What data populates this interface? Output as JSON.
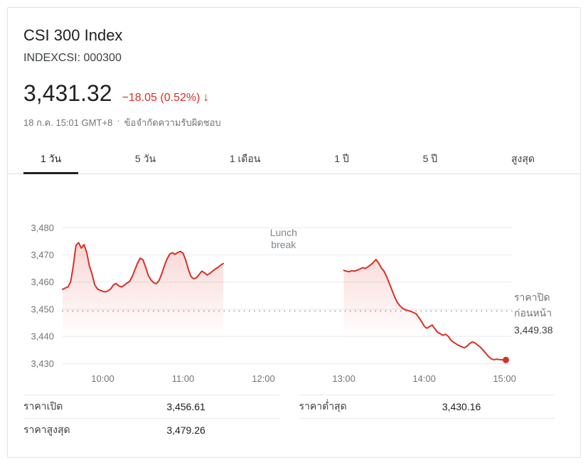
{
  "header": {
    "title": "CSI 300 Index",
    "ticker": "INDEXCSI: 000300"
  },
  "quote": {
    "price": "3,431.32",
    "change": "−18.05 (0.52%)",
    "arrow": "↓",
    "datetime": "18 ก.ค. 15:01 GMT+8",
    "separator": "·",
    "disclaimer": "ข้อจำกัดความรับผิดชอบ",
    "change_color": "#d93025"
  },
  "tabs": {
    "items": [
      {
        "label": "1 วัน",
        "active": true
      },
      {
        "label": "5 วัน",
        "active": false
      },
      {
        "label": "1 เดือน",
        "active": false
      },
      {
        "label": "1 ปี",
        "active": false
      },
      {
        "label": "5 ปี",
        "active": false
      },
      {
        "label": "สูงสุด",
        "active": false
      }
    ]
  },
  "chart_data": {
    "type": "line",
    "title": "CSI 300 Index 1-day intraday price",
    "line_color": "#d93025",
    "grid_color": "#e8eaed",
    "xlim": [
      570,
      905
    ],
    "ylim": [
      3428,
      3484
    ],
    "x_ticks": [
      {
        "t": 600,
        "label": "10:00"
      },
      {
        "t": 660,
        "label": "11:00"
      },
      {
        "t": 720,
        "label": "12:00"
      },
      {
        "t": 780,
        "label": "13:00"
      },
      {
        "t": 840,
        "label": "14:00"
      },
      {
        "t": 900,
        "label": "15:00"
      }
    ],
    "y_ticks": [
      {
        "v": 3430,
        "label": "3,430"
      },
      {
        "v": 3440,
        "label": "3,440"
      },
      {
        "v": 3450,
        "label": "3,450"
      },
      {
        "v": 3460,
        "label": "3,460"
      },
      {
        "v": 3470,
        "label": "3,470"
      },
      {
        "v": 3480,
        "label": "3,480"
      }
    ],
    "previous_close": {
      "labels": [
        "ราคาปิด",
        "ก่อนหน้า"
      ],
      "display": "3,449.38",
      "value_num": 3449.38
    },
    "annotation": {
      "lines": [
        "Lunch",
        "break"
      ],
      "t": 735,
      "v": 3477
    },
    "sessions": [
      {
        "name": "morning",
        "points": [
          [
            570,
            3457.3
          ],
          [
            572,
            3457.8
          ],
          [
            574,
            3458.2
          ],
          [
            576,
            3460
          ],
          [
            578,
            3466
          ],
          [
            580,
            3473.5
          ],
          [
            582,
            3474.5
          ],
          [
            584,
            3472.5
          ],
          [
            586,
            3473.8
          ],
          [
            588,
            3471
          ],
          [
            590,
            3466
          ],
          [
            592,
            3463
          ],
          [
            594,
            3459
          ],
          [
            596,
            3457.5
          ],
          [
            598,
            3457
          ],
          [
            600,
            3456.6
          ],
          [
            602,
            3456.4
          ],
          [
            604,
            3456.8
          ],
          [
            606,
            3457.5
          ],
          [
            608,
            3459
          ],
          [
            610,
            3459.5
          ],
          [
            612,
            3458.6
          ],
          [
            614,
            3458.2
          ],
          [
            616,
            3458.8
          ],
          [
            618,
            3459.6
          ],
          [
            620,
            3460.2
          ],
          [
            622,
            3462
          ],
          [
            624,
            3464.5
          ],
          [
            626,
            3467
          ],
          [
            628,
            3468.8
          ],
          [
            630,
            3468.2
          ],
          [
            632,
            3465.5
          ],
          [
            634,
            3462.5
          ],
          [
            636,
            3460.8
          ],
          [
            638,
            3459.8
          ],
          [
            640,
            3459.4
          ],
          [
            642,
            3460.5
          ],
          [
            644,
            3463
          ],
          [
            646,
            3466
          ],
          [
            648,
            3468.5
          ],
          [
            650,
            3470.3
          ],
          [
            652,
            3470.8
          ],
          [
            654,
            3470.2
          ],
          [
            656,
            3470.9
          ],
          [
            658,
            3471.3
          ],
          [
            660,
            3470.6
          ],
          [
            662,
            3468
          ],
          [
            664,
            3464.5
          ],
          [
            666,
            3462
          ],
          [
            668,
            3461.2
          ],
          [
            670,
            3461.6
          ],
          [
            672,
            3462.8
          ],
          [
            674,
            3464
          ],
          [
            676,
            3463.4
          ],
          [
            678,
            3462.6
          ],
          [
            680,
            3463.2
          ],
          [
            682,
            3464
          ],
          [
            684,
            3464.8
          ],
          [
            686,
            3465.4
          ],
          [
            688,
            3466.2
          ],
          [
            690,
            3466.8
          ]
        ]
      },
      {
        "name": "afternoon",
        "points": [
          [
            780,
            3464.3
          ],
          [
            782,
            3464
          ],
          [
            784,
            3463.8
          ],
          [
            786,
            3464.2
          ],
          [
            788,
            3464
          ],
          [
            790,
            3464.4
          ],
          [
            792,
            3464.8
          ],
          [
            794,
            3465.3
          ],
          [
            796,
            3465
          ],
          [
            798,
            3465.6
          ],
          [
            800,
            3466.3
          ],
          [
            802,
            3467.2
          ],
          [
            804,
            3468.3
          ],
          [
            806,
            3467
          ],
          [
            808,
            3465.2
          ],
          [
            810,
            3464
          ],
          [
            812,
            3462
          ],
          [
            814,
            3459.5
          ],
          [
            816,
            3457
          ],
          [
            818,
            3454.5
          ],
          [
            820,
            3452.5
          ],
          [
            822,
            3451.2
          ],
          [
            824,
            3450.3
          ],
          [
            826,
            3449.8
          ],
          [
            828,
            3449.5
          ],
          [
            830,
            3449.2
          ],
          [
            832,
            3448.8
          ],
          [
            834,
            3448.3
          ],
          [
            836,
            3447
          ],
          [
            838,
            3445.5
          ],
          [
            840,
            3443.8
          ],
          [
            842,
            3443
          ],
          [
            844,
            3443.6
          ],
          [
            846,
            3444.2
          ],
          [
            848,
            3442.8
          ],
          [
            850,
            3441.5
          ],
          [
            852,
            3441
          ],
          [
            854,
            3440.4
          ],
          [
            856,
            3440.8
          ],
          [
            858,
            3440
          ],
          [
            860,
            3438.6
          ],
          [
            862,
            3437.8
          ],
          [
            864,
            3437.2
          ],
          [
            866,
            3436.6
          ],
          [
            868,
            3436.2
          ],
          [
            870,
            3435.8
          ],
          [
            872,
            3436.4
          ],
          [
            874,
            3437.4
          ],
          [
            876,
            3438
          ],
          [
            878,
            3437.6
          ],
          [
            880,
            3436.8
          ],
          [
            882,
            3436
          ],
          [
            884,
            3435
          ],
          [
            886,
            3433.8
          ],
          [
            888,
            3432.6
          ],
          [
            890,
            3431.8
          ],
          [
            892,
            3431.4
          ],
          [
            894,
            3431.6
          ],
          [
            896,
            3431.5
          ],
          [
            898,
            3431.4
          ],
          [
            901,
            3431.32
          ]
        ]
      }
    ]
  },
  "stats": {
    "columns": [
      {
        "rows": [
          {
            "label": "ราคาเปิด",
            "value": "3,456.61"
          },
          {
            "label": "ราคาสูงสุด",
            "value": "3,479.26"
          }
        ]
      },
      {
        "rows": [
          {
            "label": "ราคาต่ำสุด",
            "value": "3,430.16"
          },
          {
            "label": "",
            "value": ""
          }
        ]
      }
    ]
  }
}
